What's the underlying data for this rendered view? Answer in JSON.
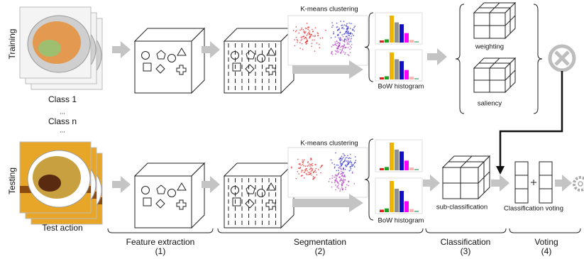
{
  "training": {
    "label": "Training",
    "class_first": "Class 1",
    "ellipsis_1": "...",
    "class_last": "Class n",
    "ellipsis_2": "..."
  },
  "testing": {
    "label": "Testing",
    "caption": "Test action"
  },
  "training_row": {
    "clustering": "K-means clustering",
    "histogram": "BoW histogram",
    "weighting": "weighting",
    "saliency": "saliency"
  },
  "testing_row": {
    "clustering": "K-means clustering",
    "histogram": "BoW histogram",
    "classification": "sub-classification",
    "voting": "Classification voting"
  },
  "stages": [
    {
      "name": "Feature extraction",
      "number": "(1)"
    },
    {
      "name": "Segmentation",
      "number": "(2)"
    },
    {
      "name": "Classification",
      "number": "(3)"
    },
    {
      "name": "Voting",
      "number": "(4)"
    }
  ]
}
